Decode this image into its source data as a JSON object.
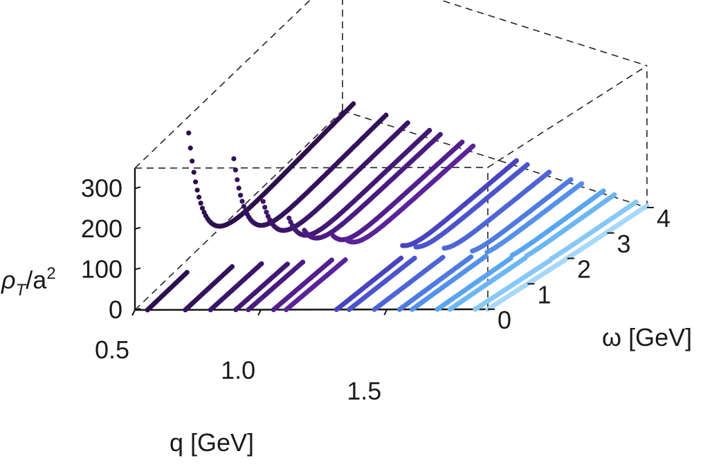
{
  "chart_data": {
    "type": "scatter",
    "projection": "3d",
    "title": "",
    "xlabel": "q [GeV]",
    "ylabel": "ω [GeV]",
    "zlabel_main": "ρ",
    "zlabel_sub": "T",
    "zlabel_rest": "/a",
    "zlabel_sup": "2",
    "xlim": [
      0.5,
      1.9
    ],
    "ylim": [
      0,
      4
    ],
    "zlim": [
      0,
      350
    ],
    "x_ticks": [
      "0.5",
      "1.0",
      "1.5"
    ],
    "x_tick_values": [
      0.5,
      1.0,
      1.5
    ],
    "y_ticks": [
      "0",
      "1",
      "2",
      "3",
      "4"
    ],
    "y_tick_values": [
      0,
      1,
      2,
      3,
      4
    ],
    "z_ticks": [
      "0",
      "100",
      "200",
      "300"
    ],
    "z_tick_values": [
      0,
      100,
      200,
      300
    ],
    "grid": false,
    "series": [
      {
        "q": 0.55,
        "color": "#2d0f4e",
        "peak_omega": 0.85,
        "peak_rho": 340
      },
      {
        "q": 0.7,
        "color": "#33125b",
        "peak_omega": 1.0,
        "peak_rho": 280
      },
      {
        "q": 0.8,
        "color": "#3a1568",
        "peak_omega": 1.1,
        "peak_rho": 160
      },
      {
        "q": 0.9,
        "color": "#421873",
        "peak_omega": 1.15,
        "peak_rho": 110
      },
      {
        "q": 0.95,
        "color": "#4a1b80",
        "peak_omega": 1.2,
        "peak_rho": 80
      },
      {
        "q": 1.05,
        "color": "#521f8c",
        "peak_omega": 1.3,
        "peak_rho": 60
      },
      {
        "q": 1.1,
        "color": "#5a2399",
        "peak_omega": 1.35,
        "peak_rho": 45
      },
      {
        "q": 1.3,
        "color": "#4844bf",
        "peak_omega": 1.5,
        "peak_rho": 30
      },
      {
        "q": 1.35,
        "color": "#4a55cc",
        "peak_omega": 1.55,
        "peak_rho": 25
      },
      {
        "q": 1.45,
        "color": "#4d66d6",
        "peak_omega": 1.65,
        "peak_rho": 20
      },
      {
        "q": 1.55,
        "color": "#4f7be0",
        "peak_omega": 1.75,
        "peak_rho": 12
      },
      {
        "q": 1.6,
        "color": "#5491e8",
        "peak_omega": 1.8,
        "peak_rho": 8
      },
      {
        "q": 1.7,
        "color": "#5aa5ef",
        "peak_omega": 1.85,
        "peak_rho": 5
      },
      {
        "q": 1.75,
        "color": "#6cb7f3",
        "peak_omega": 1.9,
        "peak_rho": 3
      },
      {
        "q": 1.85,
        "color": "#88c8f6",
        "peak_omega": 1.95,
        "peak_rho": 2
      },
      {
        "q": 1.9,
        "color": "#a8d8f8",
        "peak_omega": 2.0,
        "peak_rho": 1
      }
    ]
  }
}
